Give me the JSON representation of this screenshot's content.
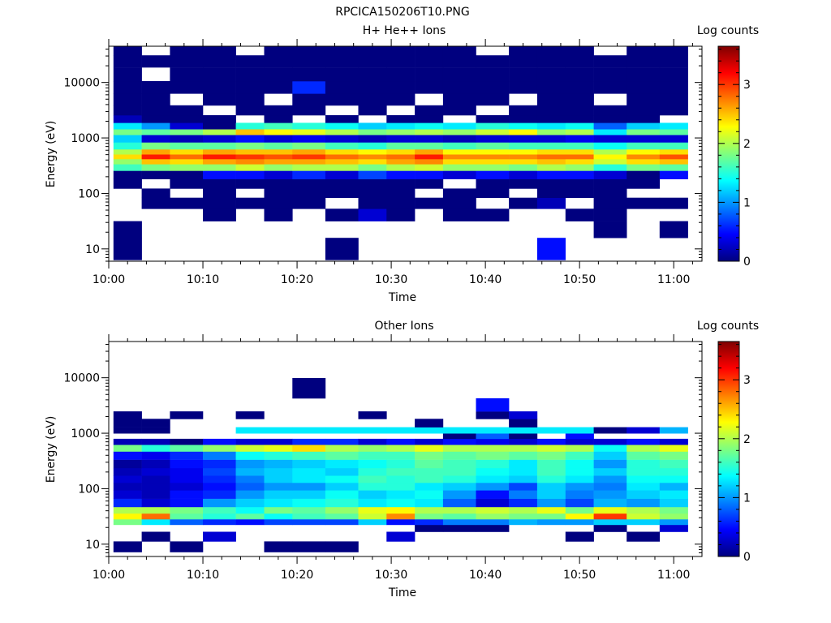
{
  "figure": {
    "title": "RPCICA150206T10.PNG"
  },
  "colorscale": [
    "#00007f",
    "#0000ff",
    "#007fff",
    "#00ffff",
    "#7fff7f",
    "#ffff00",
    "#ff7f00",
    "#ff0000",
    "#7f0000"
  ],
  "chart_data": [
    {
      "type": "heatmap",
      "title": "H+ He++ Ions",
      "xlabel": "Time",
      "ylabel": "Energy (eV)",
      "colorbar_label": "Log counts",
      "yscale": "log",
      "xlim": [
        "10:00",
        "11:03"
      ],
      "ylim": [
        6,
        45000
      ],
      "x_ticks": [
        "10:00",
        "10:10",
        "10:20",
        "10:30",
        "10:40",
        "10:50",
        "11:00"
      ],
      "y_ticks": [
        "10",
        "100",
        "1000",
        "10000"
      ],
      "colorbar_range": [
        0,
        3.65
      ],
      "colorbar_ticks": [
        "0",
        "1",
        "2",
        "3"
      ],
      "x": [
        "10:02",
        "10:05",
        "10:08",
        "10:12",
        "10:15",
        "10:18",
        "10:21",
        "10:25",
        "10:28",
        "10:31",
        "10:34",
        "10:37",
        "10:41",
        "10:44",
        "10:47",
        "10:50",
        "10:53",
        "10:57",
        "11:00"
      ],
      "y": [
        10,
        25,
        40,
        70,
        100,
        150,
        220,
        300,
        380,
        460,
        560,
        700,
        1000,
        1300,
        1600,
        2200,
        3000,
        5000,
        8000,
        14000,
        25000,
        38000
      ],
      "z": [
        [
          0.0,
          null,
          null,
          null,
          null,
          null,
          null,
          0.0,
          null,
          null,
          null,
          null,
          null,
          null,
          0.5,
          null,
          null,
          null,
          null
        ],
        [
          0.0,
          null,
          null,
          null,
          null,
          null,
          null,
          null,
          null,
          null,
          null,
          null,
          null,
          null,
          null,
          null,
          0.0,
          null,
          0.0
        ],
        [
          null,
          null,
          null,
          0.0,
          null,
          0.0,
          null,
          0.0,
          0.3,
          0.0,
          null,
          0.0,
          0.0,
          null,
          null,
          0.0,
          0.0,
          null,
          null
        ],
        [
          null,
          0.0,
          0.0,
          0.0,
          0.0,
          0.0,
          0.0,
          null,
          0.0,
          0.0,
          0.0,
          0.0,
          null,
          0.0,
          0.2,
          null,
          0.0,
          0.0,
          0.0
        ],
        [
          null,
          0.0,
          null,
          0.0,
          null,
          0.0,
          0.0,
          0.0,
          0.0,
          0.0,
          null,
          0.0,
          0.0,
          null,
          0.0,
          0.0,
          0.0,
          null,
          null
        ],
        [
          0.0,
          null,
          0.0,
          0.0,
          0.0,
          0.0,
          0.0,
          0.0,
          0.0,
          0.0,
          0.0,
          null,
          0.0,
          0.0,
          0.0,
          0.0,
          0.0,
          0.0,
          null
        ],
        [
          0.0,
          0.0,
          0.0,
          0.5,
          0.5,
          0.3,
          0.6,
          0.3,
          0.7,
          0.5,
          0.5,
          0.3,
          0.5,
          0.3,
          0.5,
          0.5,
          0.3,
          0.0,
          0.5
        ],
        [
          1.6,
          1.8,
          1.9,
          1.9,
          2.1,
          1.9,
          2.0,
          2.0,
          1.8,
          2.0,
          2.1,
          1.9,
          1.9,
          1.8,
          2.0,
          1.9,
          1.5,
          1.8,
          1.7
        ],
        [
          1.9,
          2.5,
          2.4,
          2.6,
          2.7,
          2.6,
          2.6,
          2.5,
          2.4,
          2.6,
          2.7,
          2.4,
          2.4,
          2.4,
          2.5,
          2.4,
          2.1,
          2.4,
          2.5
        ],
        [
          2.4,
          3.1,
          2.8,
          3.1,
          3.0,
          2.9,
          3.0,
          2.8,
          2.7,
          2.8,
          3.1,
          2.7,
          2.7,
          2.7,
          2.8,
          2.8,
          2.3,
          2.7,
          2.9
        ],
        [
          2.0,
          2.6,
          2.4,
          2.6,
          2.5,
          2.5,
          2.6,
          2.4,
          2.3,
          2.4,
          2.6,
          2.3,
          2.3,
          2.3,
          2.4,
          2.4,
          2.0,
          2.3,
          2.4
        ],
        [
          1.5,
          1.8,
          1.7,
          1.7,
          1.8,
          1.7,
          1.8,
          1.6,
          1.5,
          1.7,
          1.7,
          1.6,
          1.7,
          1.6,
          1.6,
          1.6,
          1.4,
          1.6,
          1.6
        ],
        [
          1.2,
          0.3,
          0.2,
          0.3,
          0.5,
          0.3,
          0.4,
          0.3,
          0.2,
          0.3,
          0.3,
          0.2,
          0.3,
          0.3,
          0.3,
          0.4,
          0.3,
          0.3,
          0.3
        ],
        [
          1.8,
          1.7,
          1.8,
          2.0,
          2.5,
          2.3,
          2.2,
          2.0,
          1.8,
          1.9,
          2.0,
          1.9,
          2.1,
          2.3,
          1.9,
          2.0,
          1.3,
          1.8,
          1.7
        ],
        [
          1.3,
          1.0,
          0.3,
          0.0,
          1.5,
          1.6,
          1.5,
          1.4,
          1.2,
          1.3,
          1.4,
          1.3,
          1.5,
          1.4,
          1.3,
          1.4,
          0.8,
          1.2,
          1.3
        ],
        [
          0.2,
          0.0,
          0.0,
          0.0,
          null,
          0.0,
          null,
          0.0,
          null,
          0.0,
          0.0,
          null,
          0.0,
          0.0,
          0.0,
          0.0,
          0.0,
          0.0,
          null
        ],
        [
          0.0,
          0.0,
          0.0,
          null,
          0.0,
          0.0,
          0.0,
          null,
          0.0,
          null,
          0.0,
          0.0,
          null,
          0.0,
          0.0,
          0.0,
          0.0,
          0.0,
          0.0
        ],
        [
          0.0,
          0.0,
          null,
          0.0,
          0.0,
          null,
          0.0,
          0.0,
          0.0,
          0.0,
          null,
          0.0,
          0.0,
          null,
          0.0,
          0.0,
          null,
          0.0,
          0.0
        ],
        [
          0.0,
          0.0,
          0.0,
          0.0,
          0.0,
          0.0,
          0.6,
          0.0,
          0.0,
          0.0,
          0.0,
          0.0,
          0.0,
          0.0,
          0.0,
          0.0,
          0.0,
          0.0,
          0.0
        ],
        [
          0.0,
          null,
          0.0,
          0.0,
          0.0,
          0.0,
          0.0,
          0.0,
          0.0,
          0.0,
          0.0,
          0.0,
          0.0,
          0.0,
          0.0,
          0.0,
          0.0,
          0.0,
          0.0
        ],
        [
          0.0,
          0.0,
          0.0,
          0.0,
          0.0,
          0.0,
          0.0,
          0.0,
          0.0,
          0.0,
          0.0,
          0.0,
          0.0,
          0.0,
          0.0,
          0.0,
          0.0,
          0.0,
          0.0
        ],
        [
          0.0,
          null,
          0.0,
          0.0,
          null,
          0.0,
          0.0,
          0.0,
          0.0,
          0.0,
          0.0,
          0.0,
          null,
          0.0,
          0.0,
          0.0,
          null,
          0.0,
          0.0
        ]
      ]
    },
    {
      "type": "heatmap",
      "title": "Other Ions",
      "xlabel": "Time",
      "ylabel": "Energy (eV)",
      "colorbar_label": "Log counts",
      "yscale": "log",
      "xlim": [
        "10:00",
        "11:03"
      ],
      "ylim": [
        6,
        45000
      ],
      "x_ticks": [
        "10:00",
        "10:10",
        "10:20",
        "10:30",
        "10:40",
        "10:50",
        "11:00"
      ],
      "y_ticks": [
        "10",
        "100",
        "1000",
        "10000"
      ],
      "colorbar_range": [
        0,
        3.65
      ],
      "colorbar_ticks": [
        "0",
        "1",
        "2",
        "3"
      ],
      "x": [
        "10:02",
        "10:05",
        "10:08",
        "10:12",
        "10:15",
        "10:18",
        "10:21",
        "10:25",
        "10:28",
        "10:31",
        "10:34",
        "10:37",
        "10:41",
        "10:44",
        "10:47",
        "10:50",
        "10:53",
        "10:57",
        "11:00"
      ],
      "y": [
        9,
        14,
        20,
        25,
        32,
        40,
        55,
        80,
        110,
        150,
        200,
        280,
        400,
        550,
        700,
        900,
        1100,
        1500,
        2200,
        2800,
        6500
      ],
      "z": [
        [
          0.0,
          null,
          0.0,
          null,
          null,
          0.0,
          0.0,
          0.0,
          null,
          null,
          null,
          null,
          null,
          null,
          null,
          null,
          null,
          null,
          null
        ],
        [
          null,
          0.0,
          null,
          0.3,
          null,
          null,
          null,
          null,
          null,
          0.3,
          null,
          null,
          null,
          null,
          null,
          0.0,
          null,
          0.0,
          null
        ],
        [
          null,
          null,
          null,
          null,
          null,
          null,
          null,
          null,
          null,
          null,
          0.0,
          0.0,
          0.0,
          null,
          null,
          null,
          0.0,
          null,
          0.3
        ],
        [
          1.8,
          1.3,
          0.8,
          0.6,
          0.5,
          0.7,
          0.7,
          0.7,
          1.2,
          0.5,
          0.6,
          0.9,
          0.9,
          1.1,
          1.0,
          1.0,
          1.2,
          1.2,
          1.0
        ],
        [
          2.3,
          2.8,
          1.7,
          1.5,
          1.7,
          1.4,
          1.6,
          1.7,
          2.1,
          2.7,
          1.8,
          1.7,
          1.9,
          1.8,
          1.8,
          2.3,
          3.0,
          2.1,
          1.9
        ],
        [
          2.0,
          2.0,
          1.8,
          1.6,
          1.4,
          1.8,
          1.7,
          1.9,
          2.2,
          2.3,
          2.0,
          2.0,
          2.1,
          2.0,
          2.2,
          1.8,
          2.2,
          2.0,
          1.8
        ],
        [
          0.6,
          0.3,
          0.5,
          1.0,
          1.2,
          1.3,
          1.4,
          1.5,
          1.3,
          1.4,
          1.3,
          0.8,
          0.3,
          0.6,
          1.0,
          0.7,
          1.1,
          1.0,
          1.2
        ],
        [
          0.3,
          0.2,
          0.5,
          0.6,
          1.0,
          1.2,
          1.2,
          1.4,
          1.2,
          1.3,
          1.4,
          1.0,
          0.5,
          0.9,
          1.2,
          0.9,
          1.0,
          1.2,
          1.3
        ],
        [
          0.2,
          0.2,
          0.3,
          0.5,
          0.8,
          1.0,
          1.0,
          1.2,
          1.5,
          1.5,
          1.3,
          1.2,
          1.0,
          0.7,
          1.2,
          1.0,
          0.9,
          1.3,
          1.1
        ],
        [
          0.3,
          0.2,
          0.4,
          0.6,
          0.9,
          1.2,
          1.3,
          1.4,
          1.6,
          1.5,
          1.6,
          1.5,
          1.3,
          1.2,
          1.5,
          1.3,
          1.0,
          1.4,
          1.4
        ],
        [
          0.2,
          0.3,
          0.4,
          0.7,
          1.1,
          1.2,
          1.3,
          1.2,
          1.5,
          1.6,
          1.6,
          1.6,
          1.4,
          1.3,
          1.6,
          1.4,
          1.2,
          1.5,
          1.5
        ],
        [
          0.1,
          0.2,
          0.5,
          0.6,
          1.0,
          1.1,
          1.2,
          1.3,
          1.4,
          1.5,
          1.7,
          1.6,
          1.5,
          1.3,
          1.6,
          1.4,
          1.0,
          1.5,
          1.6
        ],
        [
          0.5,
          0.4,
          0.6,
          0.9,
          1.4,
          1.5,
          1.6,
          1.7,
          1.6,
          1.6,
          1.8,
          1.7,
          1.8,
          1.7,
          1.8,
          1.6,
          1.2,
          1.7,
          1.8
        ],
        [
          1.8,
          1.5,
          1.7,
          1.9,
          2.1,
          2.2,
          2.4,
          2.0,
          1.9,
          2.0,
          2.2,
          2.0,
          2.0,
          2.0,
          2.1,
          2.0,
          1.4,
          2.0,
          2.2
        ],
        [
          0.2,
          0.2,
          0.0,
          0.5,
          0.3,
          0.3,
          0.6,
          0.6,
          0.3,
          0.5,
          0.3,
          0.5,
          0.4,
          0.3,
          0.5,
          0.3,
          0.3,
          0.5,
          0.3
        ],
        [
          null,
          null,
          null,
          null,
          null,
          null,
          null,
          null,
          null,
          null,
          null,
          0.0,
          0.8,
          0.0,
          null,
          0.5,
          null,
          null,
          null
        ],
        [
          0.0,
          0.0,
          null,
          null,
          1.3,
          1.3,
          1.3,
          1.3,
          1.3,
          1.3,
          1.3,
          1.3,
          1.3,
          1.3,
          1.3,
          1.3,
          0.0,
          0.3,
          1.1
        ],
        [
          0.0,
          0.0,
          null,
          null,
          null,
          null,
          null,
          null,
          null,
          null,
          0.0,
          null,
          null,
          0.0,
          null,
          null,
          null,
          null,
          null
        ],
        [
          0.0,
          null,
          0.0,
          null,
          0.0,
          null,
          null,
          null,
          0.0,
          null,
          null,
          null,
          0.0,
          0.3,
          null,
          null,
          null,
          null,
          null
        ],
        [
          null,
          null,
          null,
          null,
          null,
          null,
          null,
          null,
          null,
          null,
          null,
          null,
          0.5,
          null,
          null,
          null,
          null,
          null,
          null
        ],
        [
          null,
          null,
          null,
          null,
          null,
          null,
          0.0,
          null,
          null,
          null,
          null,
          null,
          null,
          null,
          null,
          null,
          null,
          null,
          null
        ]
      ]
    }
  ]
}
